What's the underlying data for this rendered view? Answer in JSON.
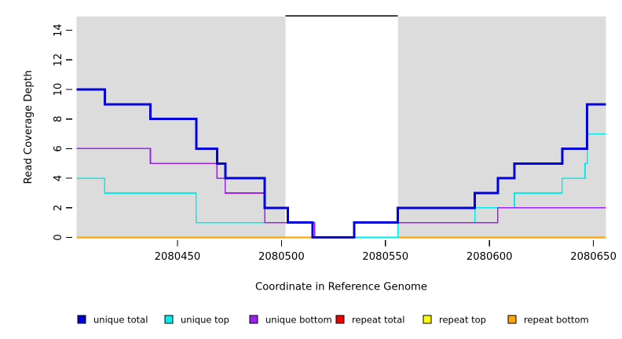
{
  "chart_data": {
    "type": "line",
    "subtype": "step-coverage",
    "title": "",
    "xlabel": "Coordinate in Reference Genome",
    "ylabel": "Read Coverage Depth",
    "xlim": [
      2080401.5,
      2080656
    ],
    "ylim": [
      0,
      15
    ],
    "x_ticks": [
      2080450,
      2080500,
      2080550,
      2080600,
      2080650
    ],
    "y_ticks": [
      0,
      2,
      4,
      6,
      8,
      10,
      12,
      14
    ],
    "grid": false,
    "legend_position": "bottom",
    "shaded_regions": [
      {
        "x0": 2080401.5,
        "x1": 2080502,
        "color": "#dcdcdc"
      },
      {
        "x0": 2080556,
        "x1": 2080656,
        "color": "#dcdcdc"
      }
    ],
    "masked_region": {
      "x0": 2080502,
      "x1": 2080556,
      "color": "#ffffff",
      "top_border_color": "#000000"
    },
    "x_end": 2080656,
    "draw_order": [
      "repeat total",
      "repeat top",
      "repeat bottom",
      "unique top",
      "unique bottom",
      "unique total"
    ],
    "series": [
      {
        "name": "unique total",
        "color": "#0000dd",
        "line_width": 3,
        "x": [
          2080402,
          2080415,
          2080437,
          2080459,
          2080469,
          2080473,
          2080492,
          2080503,
          2080515,
          2080535,
          2080556,
          2080593,
          2080604,
          2080612,
          2080635,
          2080647
        ],
        "v": [
          10,
          9,
          8,
          6,
          5,
          4,
          2,
          1,
          0,
          1,
          2,
          3,
          4,
          5,
          6,
          9
        ]
      },
      {
        "name": "unique top",
        "color": "#00eeee",
        "line_width": 1.6,
        "x": [
          2080402,
          2080415,
          2080459,
          2080515,
          2080556,
          2080593,
          2080612,
          2080635,
          2080646,
          2080647
        ],
        "v": [
          4,
          3,
          1,
          0,
          1,
          2,
          3,
          4,
          5,
          7
        ]
      },
      {
        "name": "unique bottom",
        "color": "#a020f0",
        "line_width": 1.6,
        "x": [
          2080402,
          2080437,
          2080469,
          2080473,
          2080492,
          2080516,
          2080535,
          2080604
        ],
        "v": [
          6,
          5,
          4,
          3,
          1,
          0,
          1,
          2
        ]
      },
      {
        "name": "repeat total",
        "color": "#ee0000",
        "line_width": 1.6,
        "x": [
          2080402
        ],
        "v": [
          0
        ]
      },
      {
        "name": "repeat top",
        "color": "#ffff00",
        "line_width": 1.6,
        "x": [
          2080402
        ],
        "v": [
          0
        ]
      },
      {
        "name": "repeat bottom",
        "color": "#ffa500",
        "line_width": 1.6,
        "x": [
          2080402
        ],
        "v": [
          0
        ]
      }
    ],
    "legend": [
      {
        "label": "unique total",
        "color": "#0000dd"
      },
      {
        "label": "unique top",
        "color": "#00eeee"
      },
      {
        "label": "unique bottom",
        "color": "#a020f0"
      },
      {
        "label": "repeat total",
        "color": "#ee0000"
      },
      {
        "label": "repeat top",
        "color": "#ffff00"
      },
      {
        "label": "repeat bottom",
        "color": "#ffa500"
      }
    ]
  }
}
